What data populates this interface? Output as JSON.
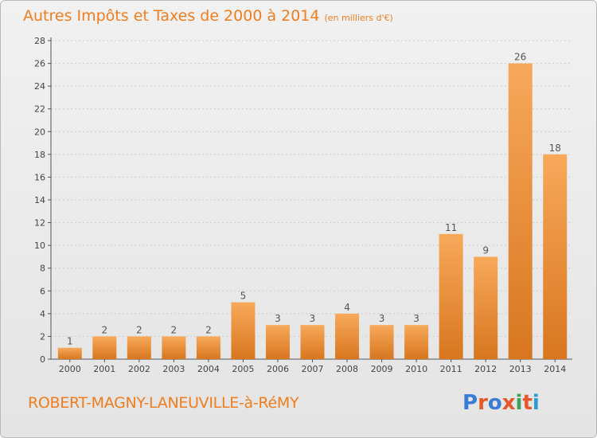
{
  "title": "Autres Impôts et Taxes de 2000 à 2014",
  "unit": "(en milliers d'€)",
  "commune": "ROBERT-MAGNY-LANEUVILLE-à-RéMY",
  "logo": "Proxiti",
  "colors": {
    "title": "#f07d1e",
    "bar_light": "#f7a95a",
    "bar_dark": "#d8761f",
    "axis": "#555555",
    "grid": "#cccccc",
    "logo_letters": [
      "#3a7bd5",
      "#e8572a",
      "#3a7bd5",
      "#e8572a",
      "#3aa35a",
      "#e8572a",
      "#2a9bd5"
    ]
  },
  "chart_data": {
    "type": "bar",
    "categories": [
      "2000",
      "2001",
      "2002",
      "2003",
      "2004",
      "2005",
      "2006",
      "2007",
      "2008",
      "2009",
      "2010",
      "2011",
      "2012",
      "2013",
      "2014"
    ],
    "values": [
      1,
      2,
      2,
      2,
      2,
      5,
      3,
      3,
      4,
      3,
      3,
      11,
      9,
      26,
      18
    ],
    "ylim": [
      0,
      28
    ],
    "yticks": [
      0,
      2,
      4,
      6,
      8,
      10,
      12,
      14,
      16,
      18,
      20,
      22,
      24,
      26,
      28
    ],
    "grid": true,
    "title": "Autres Impôts et Taxes de 2000 à 2014",
    "xlabel": "",
    "ylabel": ""
  }
}
